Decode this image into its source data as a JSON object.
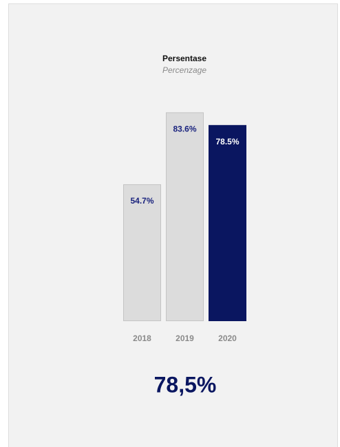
{
  "chart_data": {
    "type": "bar",
    "title": "Persentase",
    "subtitle": "Percenzage",
    "categories": [
      "2018",
      "2019",
      "2020"
    ],
    "values": [
      54.7,
      83.6,
      78.5
    ],
    "value_labels": [
      "54.7%",
      "83.6%",
      "78.5%"
    ],
    "colors": [
      "#dcdcdc",
      "#dcdcdc",
      "#0a1660"
    ],
    "ylim": [
      0,
      100
    ],
    "headline": "78,5%"
  }
}
